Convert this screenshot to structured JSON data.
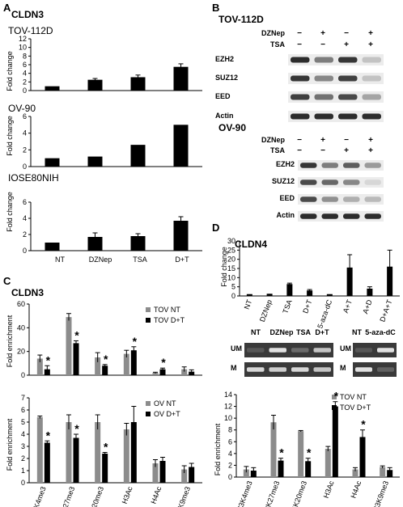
{
  "panel_labels": {
    "A": "A",
    "B": "B",
    "C": "C",
    "D": "D"
  },
  "colors": {
    "bar_black": "#000000",
    "bar_gray": "#8c8c8c",
    "blot_bg": "#ececec",
    "band": "#222222"
  },
  "panelA": {
    "title": "CLDN3",
    "charts": [
      {
        "label": "TOV-112D"
      },
      {
        "label": "OV-90"
      },
      {
        "label": "IOSE80NIH"
      }
    ],
    "ylabel": "Fold change",
    "categories": [
      "NT",
      "DZNep",
      "TSA",
      "D+T"
    ]
  },
  "panelB": {
    "groups": [
      {
        "name": "TOV-112D",
        "rows": [
          "EZH2",
          "SUZ12",
          "EED",
          "Actin"
        ]
      },
      {
        "name": "OV-90",
        "rows": [
          "EZH2",
          "SUZ12",
          "EED",
          "Actin"
        ]
      }
    ],
    "treat1": "DZNep",
    "treat2": "TSA",
    "signs1": [
      "−",
      "+",
      "−",
      "+"
    ],
    "signs2": [
      "−",
      "−",
      "+",
      "+"
    ]
  },
  "panelC": {
    "title": "CLDN3",
    "ylabel": "Fold enrichment",
    "categories": [
      "H3K4me3",
      "H3K27me3",
      "H4K20me3",
      "H3Ac",
      "H4Ac",
      "H3K9me3"
    ],
    "top_legend": [
      "TOV NT",
      "TOV D+T"
    ],
    "bottom_legend": [
      "OV NT",
      "OV D+T"
    ],
    "star": "*"
  },
  "panelD": {
    "title": "CLDN4",
    "ylabel": "Fold change",
    "gel_labels_left": [
      "NT",
      "DZNep",
      "TSA",
      "D+T"
    ],
    "gel_labels_right": [
      "NT",
      "5-aza-dC"
    ],
    "gel_rows": [
      "UM",
      "M"
    ],
    "bottom_ylabel": "Fold enrichment",
    "bottom_categories": [
      "H3K4me3",
      "H3K27me3",
      "H4K20me3",
      "H3Ac",
      "H4Ac",
      "H3K9me3"
    ],
    "bottom_legend": [
      "TOV NT",
      "TOV D+T"
    ],
    "star": "*"
  },
  "chart_data": [
    {
      "type": "bar",
      "subtitle": "TOV-112D",
      "ylabel": "Fold change",
      "categories": [
        "NT",
        "DZNep",
        "TSA",
        "D+T"
      ],
      "values": [
        1.0,
        2.5,
        3.1,
        5.5
      ],
      "errors": [
        0,
        0.3,
        0.5,
        0.7
      ],
      "ylim": [
        0,
        12
      ],
      "yticks": [
        0,
        2,
        4,
        6,
        8,
        10,
        12
      ]
    },
    {
      "type": "bar",
      "subtitle": "OV-90",
      "ylabel": "Fold change",
      "categories": [
        "NT",
        "DZNep",
        "TSA",
        "D+T"
      ],
      "values": [
        1.0,
        1.2,
        2.6,
        5.0
      ],
      "errors": [
        0,
        0,
        0,
        0
      ],
      "ylim": [
        0,
        6
      ],
      "yticks": [
        0,
        2,
        4,
        6
      ]
    },
    {
      "type": "bar",
      "subtitle": "IOSE80NIH",
      "ylabel": "Fold change",
      "categories": [
        "NT",
        "DZNep",
        "TSA",
        "D+T"
      ],
      "values": [
        1.0,
        1.7,
        1.8,
        3.7
      ],
      "errors": [
        0,
        0.5,
        0.3,
        0.5
      ],
      "ylim": [
        0,
        6
      ],
      "yticks": [
        0,
        2,
        4,
        6
      ]
    },
    {
      "type": "bar",
      "title": "CLDN3",
      "ylabel": "Fold enrichment",
      "categories": [
        "H3K4me3",
        "H3K27me3",
        "H4K20me3",
        "H3Ac",
        "H4Ac",
        "H3K9me3"
      ],
      "series": [
        {
          "name": "TOV NT",
          "values": [
            14,
            49,
            15,
            18,
            2,
            5
          ],
          "errors": [
            3,
            3,
            4,
            3,
            0.5,
            2
          ]
        },
        {
          "name": "TOV D+T",
          "values": [
            5,
            27,
            8,
            21,
            5,
            3
          ],
          "errors": [
            3,
            2,
            1,
            3,
            1,
            1.5
          ]
        }
      ],
      "significant": [
        true,
        true,
        true,
        true,
        true,
        false
      ],
      "ylim": [
        0,
        60
      ],
      "yticks": [
        0,
        20,
        40,
        60
      ]
    },
    {
      "type": "bar",
      "ylabel": "Fold enrichment",
      "categories": [
        "H3K4me3",
        "H3K27me3",
        "H4K20me3",
        "H3Ac",
        "H4Ac",
        "H3K9me3"
      ],
      "series": [
        {
          "name": "OV NT",
          "values": [
            5.4,
            5.0,
            5.0,
            4.4,
            1.6,
            1.1
          ],
          "errors": [
            0.1,
            0.6,
            0.6,
            0.5,
            0.3,
            0.3
          ]
        },
        {
          "name": "OV D+T",
          "values": [
            3.3,
            3.7,
            2.4,
            5.0,
            1.8,
            1.3
          ],
          "errors": [
            0.15,
            0.3,
            0.1,
            1.3,
            0.3,
            0.3
          ]
        }
      ],
      "significant": [
        true,
        true,
        true,
        false,
        false,
        false
      ],
      "ylim": [
        0,
        7
      ],
      "yticks": [
        0,
        1,
        2,
        3,
        4,
        5,
        6,
        7
      ]
    },
    {
      "type": "bar",
      "title": "CLDN4",
      "ylabel": "Fold change",
      "categories": [
        "NT",
        "DZNep",
        "TSA",
        "D+T",
        "5-aza-dC",
        "A+T",
        "A+D",
        "D+A+T"
      ],
      "values": [
        1,
        1.2,
        6.5,
        3,
        1,
        15.5,
        4,
        16
      ],
      "errors": [
        0,
        0,
        0.5,
        0.5,
        0,
        7,
        1,
        9
      ],
      "ylim": [
        0,
        30
      ],
      "yticks": [
        0,
        5,
        10,
        15,
        20,
        25,
        30
      ]
    },
    {
      "type": "bar",
      "ylabel": "Fold enrichment",
      "categories": [
        "H3K4me3",
        "H3K27me3",
        "H4K20me3",
        "H3Ac",
        "H4Ac",
        "H3K9me3"
      ],
      "series": [
        {
          "name": "TOV NT",
          "values": [
            1.3,
            9.3,
            7.8,
            4.8,
            1.3,
            1.7
          ],
          "errors": [
            0.5,
            1.2,
            0.1,
            0.4,
            0.3,
            0.2
          ]
        },
        {
          "name": "TOV D+T",
          "values": [
            1.1,
            2.8,
            2.7,
            12,
            6.8,
            1.2
          ],
          "errors": [
            0.5,
            0.4,
            0.5,
            0.8,
            1.2,
            0.4
          ]
        }
      ],
      "significant": [
        false,
        true,
        true,
        true,
        true,
        false
      ],
      "ylim": [
        0,
        14
      ],
      "yticks": [
        0,
        2,
        4,
        6,
        8,
        10,
        12,
        14
      ]
    }
  ]
}
